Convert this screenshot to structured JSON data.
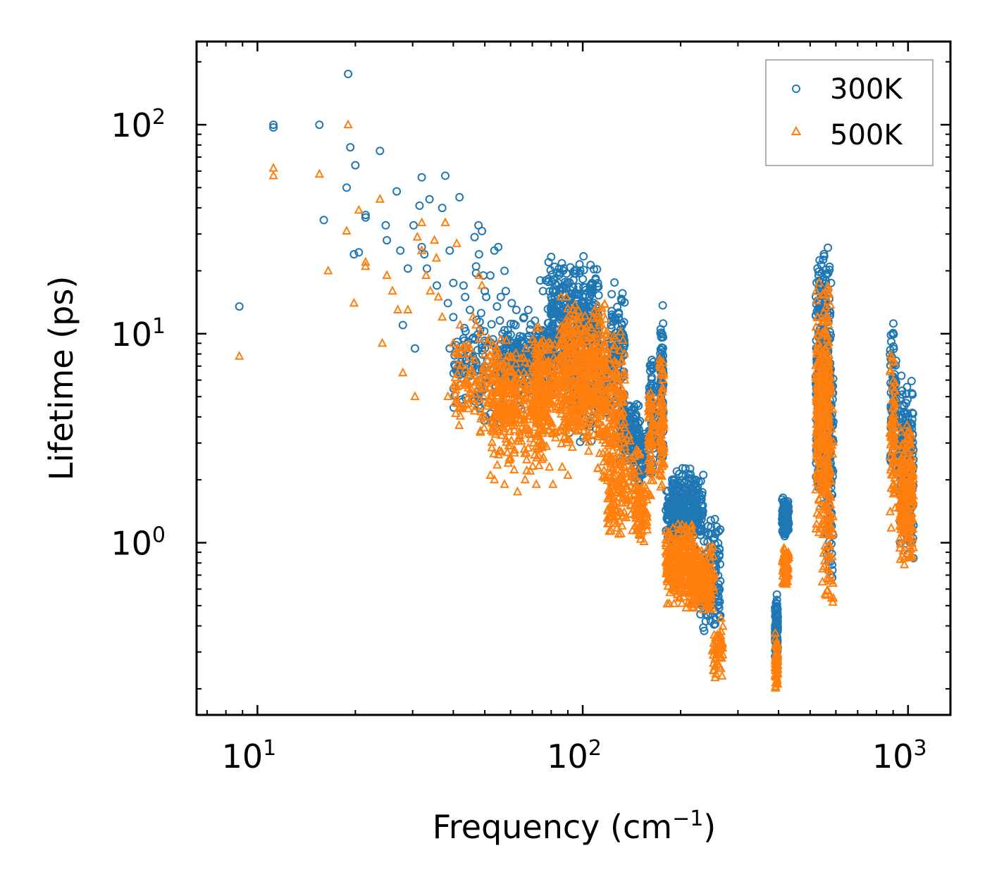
{
  "chart_data": {
    "type": "scatter",
    "title": "",
    "xlabel_main": "Frequency (cm",
    "xlabel_sup": "−1",
    "xlabel_tail": ")",
    "ylabel": "Lifetime (ps)",
    "xscale": "log",
    "yscale": "log",
    "xlim": [
      6.5,
      1350
    ],
    "ylim": [
      0.15,
      250
    ],
    "x_ticks": [
      {
        "value": 10,
        "base": "10",
        "exp": "1"
      },
      {
        "value": 100,
        "base": "10",
        "exp": "2"
      },
      {
        "value": 1000,
        "base": "10",
        "exp": "3"
      }
    ],
    "y_ticks": [
      {
        "value": 1,
        "base": "10",
        "exp": "0"
      },
      {
        "value": 10,
        "base": "10",
        "exp": "1"
      },
      {
        "value": 100,
        "base": "10",
        "exp": "2"
      }
    ],
    "legend_position": "top-right",
    "series": [
      {
        "name": "300K",
        "color": "#1f77b4",
        "marker": "circle",
        "points": [
          [
            8.8,
            13.5
          ],
          [
            11.2,
            100
          ],
          [
            11.2,
            97
          ],
          [
            15.5,
            100
          ],
          [
            19.0,
            175
          ],
          [
            19.3,
            78
          ],
          [
            20.0,
            64
          ],
          [
            18.8,
            50
          ],
          [
            19.8,
            24
          ],
          [
            16.0,
            35
          ],
          [
            21.5,
            37
          ],
          [
            21.5,
            36
          ],
          [
            23.8,
            75
          ],
          [
            24.8,
            33
          ],
          [
            25.0,
            28
          ],
          [
            26.8,
            48
          ],
          [
            27.5,
            25
          ],
          [
            28.0,
            11
          ],
          [
            29.0,
            20.5
          ],
          [
            30.2,
            33
          ],
          [
            31.5,
            41
          ],
          [
            32.0,
            56
          ],
          [
            32.0,
            26
          ],
          [
            32.6,
            24
          ],
          [
            33.2,
            20.5
          ],
          [
            33.8,
            44
          ],
          [
            35.6,
            17
          ],
          [
            37.0,
            40
          ],
          [
            37.8,
            57
          ],
          [
            38.5,
            14
          ],
          [
            39.0,
            25
          ],
          [
            40.0,
            12
          ],
          [
            41.8,
            45
          ],
          [
            43.0,
            17
          ],
          [
            43.5,
            15
          ],
          [
            45.0,
            13
          ],
          [
            46.5,
            29
          ],
          [
            47.0,
            21
          ],
          [
            47.8,
            33
          ],
          [
            48.0,
            24
          ],
          [
            49.0,
            31
          ],
          [
            49.5,
            19
          ],
          [
            50.0,
            16
          ],
          [
            50.5,
            15
          ],
          [
            52.0,
            19
          ],
          [
            53.5,
            25
          ],
          [
            54.5,
            13.5
          ],
          [
            55.0,
            26
          ],
          [
            56.0,
            15
          ],
          [
            57.5,
            20
          ],
          [
            58.0,
            16
          ],
          [
            60.5,
            14
          ],
          [
            62.5,
            13
          ],
          [
            66.0,
            12
          ],
          [
            68.0,
            13
          ],
          [
            74.0,
            18
          ],
          [
            75.5,
            16
          ],
          [
            77.0,
            18
          ],
          [
            78.5,
            22
          ],
          [
            80.0,
            15
          ],
          [
            83.0,
            17
          ],
          [
            85.5,
            16
          ],
          [
            87.5,
            17
          ],
          [
            39.0,
            8.5
          ],
          [
            44.0,
            7.5
          ],
          [
            30.5,
            8.5
          ],
          [
            20.5,
            24.5
          ],
          [
            47.0,
            19.5
          ],
          [
            40.0,
            17.5
          ]
        ],
        "clusters": [
          {
            "x": [
              40,
              65
            ],
            "y": [
              3.5,
              13
            ],
            "n": 170
          },
          {
            "x": [
              58,
              82
            ],
            "y": [
              5,
              12
            ],
            "n": 260
          },
          {
            "x": [
              78,
              112
            ],
            "y": [
              6,
              24
            ],
            "n": 360
          },
          {
            "x": [
              90,
              122
            ],
            "y": [
              3,
              12
            ],
            "n": 180
          },
          {
            "x": [
              122,
              135
            ],
            "y": [
              4,
              18
            ],
            "n": 110
          },
          {
            "x": [
              130,
              150
            ],
            "y": [
              2.3,
              5
            ],
            "n": 120
          },
          {
            "x": [
              140,
              158
            ],
            "y": [
              1.8,
              4
            ],
            "n": 60
          },
          {
            "x": [
              160,
              165
            ],
            "y": [
              2,
              9
            ],
            "n": 70
          },
          {
            "x": [
              173,
              177
            ],
            "y": [
              2,
              14
            ],
            "n": 90
          },
          {
            "x": [
              180,
              200
            ],
            "y": [
              1.0,
              1.9
            ],
            "n": 110
          },
          {
            "x": [
              188,
              235
            ],
            "y": [
              0.9,
              2.4
            ],
            "n": 250
          },
          {
            "x": [
              228,
              265
            ],
            "y": [
              0.35,
              1.4
            ],
            "n": 140
          },
          {
            "x": [
              390,
              398
            ],
            "y": [
              0.25,
              0.6
            ],
            "n": 80
          },
          {
            "x": [
              410,
              430
            ],
            "y": [
              1.0,
              1.7
            ],
            "n": 90
          },
          {
            "x": [
              520,
              580
            ],
            "y": [
              1.5,
              30
            ],
            "n": 320
          },
          {
            "x": [
              560,
              590
            ],
            "y": [
              0.5,
              9
            ],
            "n": 90
          },
          {
            "x": [
              880,
              920
            ],
            "y": [
              2.0,
              13
            ],
            "n": 80
          },
          {
            "x": [
              940,
              1040
            ],
            "y": [
              0.8,
              6.5
            ],
            "n": 200
          }
        ]
      },
      {
        "name": "500K",
        "color": "#ff7f0e",
        "marker": "triangle",
        "points": [
          [
            8.8,
            7.8
          ],
          [
            11.2,
            62
          ],
          [
            11.2,
            57
          ],
          [
            15.5,
            58
          ],
          [
            19.0,
            100
          ],
          [
            18.8,
            31
          ],
          [
            19.8,
            14
          ],
          [
            20.5,
            39
          ],
          [
            21.5,
            22
          ],
          [
            21.5,
            21
          ],
          [
            16.5,
            20
          ],
          [
            23.8,
            44
          ],
          [
            24.2,
            9
          ],
          [
            25.0,
            19
          ],
          [
            26.0,
            16
          ],
          [
            27.0,
            13
          ],
          [
            28.0,
            6.5
          ],
          [
            29.0,
            13
          ],
          [
            30.5,
            5
          ],
          [
            31.0,
            29
          ],
          [
            32.0,
            34
          ],
          [
            32.0,
            25
          ],
          [
            33.0,
            19
          ],
          [
            34.0,
            16
          ],
          [
            35.0,
            28
          ],
          [
            35.5,
            23
          ],
          [
            36.0,
            15
          ],
          [
            37.0,
            12
          ],
          [
            37.8,
            34
          ],
          [
            38.5,
            5
          ],
          [
            40.0,
            9
          ],
          [
            41.0,
            27
          ],
          [
            42.0,
            11
          ],
          [
            43.0,
            8
          ],
          [
            44.0,
            6
          ],
          [
            44.5,
            5.5
          ],
          [
            46.0,
            12
          ],
          [
            47.0,
            11
          ],
          [
            48.0,
            19
          ],
          [
            49.0,
            17
          ],
          [
            50.0,
            8
          ],
          [
            51.0,
            4.5
          ],
          [
            52.0,
            2.1
          ],
          [
            53.5,
            2.0
          ],
          [
            57.5,
            1.9
          ],
          [
            59.0,
            2.4
          ],
          [
            63.0,
            1.75
          ],
          [
            66.5,
            2.0
          ],
          [
            69.0,
            2.2
          ],
          [
            72.0,
            1.9
          ],
          [
            75.0,
            2.5
          ],
          [
            79.0,
            2.3
          ],
          [
            81.0,
            1.9
          ],
          [
            86.5,
            2.3
          ],
          [
            90.0,
            2.1
          ],
          [
            123.0,
            1.5
          ]
        ],
        "clusters": [
          {
            "x": [
              40,
              62
            ],
            "y": [
              3,
              11
            ],
            "n": 150
          },
          {
            "x": [
              52,
              78
            ],
            "y": [
              2.2,
              9
            ],
            "n": 320
          },
          {
            "x": [
              70,
              110
            ],
            "y": [
              2.5,
              12
            ],
            "n": 380
          },
          {
            "x": [
              85,
              120
            ],
            "y": [
              3,
              16
            ],
            "n": 260
          },
          {
            "x": [
              110,
              135
            ],
            "y": [
              1.8,
              11
            ],
            "n": 180
          },
          {
            "x": [
              118,
              150
            ],
            "y": [
              1.0,
              3.5
            ],
            "n": 160
          },
          {
            "x": [
              145,
              158
            ],
            "y": [
              1.0,
              2.2
            ],
            "n": 70
          },
          {
            "x": [
              159,
              165
            ],
            "y": [
              1.5,
              7
            ],
            "n": 60
          },
          {
            "x": [
              172,
              178
            ],
            "y": [
              1.7,
              9
            ],
            "n": 80
          },
          {
            "x": [
              180,
              220
            ],
            "y": [
              0.45,
              1.3
            ],
            "n": 280
          },
          {
            "x": [
              215,
              255
            ],
            "y": [
              0.45,
              1.0
            ],
            "n": 160
          },
          {
            "x": [
              250,
              270
            ],
            "y": [
              0.22,
              0.45
            ],
            "n": 60
          },
          {
            "x": [
              390,
              398
            ],
            "y": [
              0.19,
              0.4
            ],
            "n": 70
          },
          {
            "x": [
              410,
              430
            ],
            "y": [
              0.6,
              1.0
            ],
            "n": 70
          },
          {
            "x": [
              520,
              580
            ],
            "y": [
              1.0,
              20
            ],
            "n": 340
          },
          {
            "x": [
              545,
              590
            ],
            "y": [
              0.3,
              5
            ],
            "n": 80
          },
          {
            "x": [
              880,
              915
            ],
            "y": [
              1.0,
              9
            ],
            "n": 80
          },
          {
            "x": [
              940,
              1040
            ],
            "y": [
              0.72,
              4
            ],
            "n": 220
          }
        ]
      }
    ]
  }
}
